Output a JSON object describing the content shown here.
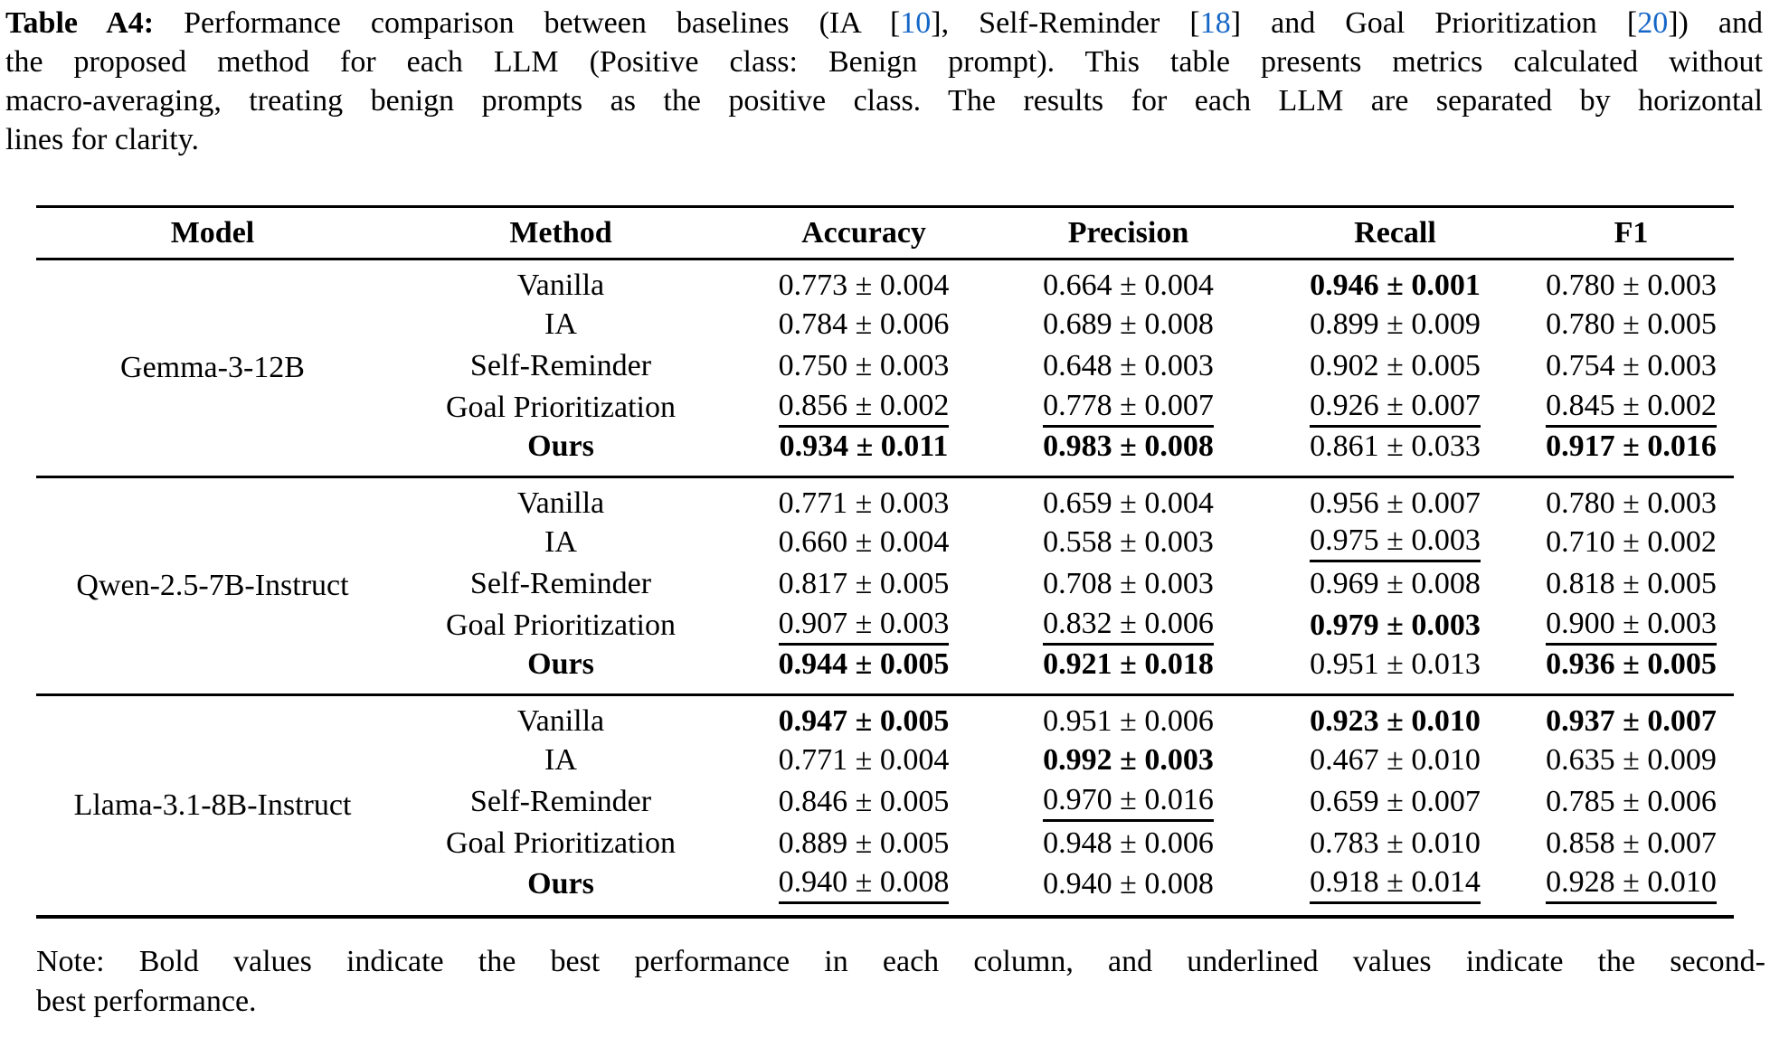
{
  "colors": {
    "citation_blue": "#1566C6",
    "text": "#000000",
    "background": "#FFFFFF",
    "rule": "#000000"
  },
  "caption": {
    "line1": {
      "label": "Table A4:",
      "seg1": " Performance comparison between baselines (IA [",
      "cite1": "10",
      "seg2": "], Self-Reminder [",
      "cite2": "18",
      "seg3": "] and Goal Prioritization [",
      "cite3": "20",
      "seg4": "]) and"
    },
    "line2": "the proposed method for each LLM (Positive class: Benign prompt). This table presents metrics calculated without",
    "line3": "macro-averaging, treating benign prompts as the positive class. The results for each LLM are separated by horizontal",
    "line4": "lines for clarity."
  },
  "table": {
    "headers": [
      "Model",
      "Method",
      "Accuracy",
      "Precision",
      "Recall",
      "F1"
    ],
    "sections": [
      {
        "model": "Gemma-3-12B",
        "rows": [
          {
            "method": "Vanilla",
            "method_style": "plain",
            "values": [
              {
                "text": "0.773 ± 0.004",
                "style": "plain"
              },
              {
                "text": "0.664 ± 0.004",
                "style": "plain"
              },
              {
                "text": "0.946 ± 0.001",
                "style": "bold"
              },
              {
                "text": "0.780 ± 0.003",
                "style": "plain"
              }
            ]
          },
          {
            "method": "IA",
            "method_style": "plain",
            "values": [
              {
                "text": "0.784 ± 0.006",
                "style": "plain"
              },
              {
                "text": "0.689 ± 0.008",
                "style": "plain"
              },
              {
                "text": "0.899 ± 0.009",
                "style": "plain"
              },
              {
                "text": "0.780 ± 0.005",
                "style": "plain"
              }
            ]
          },
          {
            "method": "Self-Reminder",
            "method_style": "plain",
            "values": [
              {
                "text": "0.750 ± 0.003",
                "style": "plain"
              },
              {
                "text": "0.648 ± 0.003",
                "style": "plain"
              },
              {
                "text": "0.902 ± 0.005",
                "style": "plain"
              },
              {
                "text": "0.754 ± 0.003",
                "style": "plain"
              }
            ]
          },
          {
            "method": "Goal Prioritization",
            "method_style": "plain",
            "values": [
              {
                "text": "0.856 ± 0.002",
                "style": "underline"
              },
              {
                "text": "0.778 ± 0.007",
                "style": "underline"
              },
              {
                "text": "0.926 ± 0.007",
                "style": "underline"
              },
              {
                "text": "0.845 ± 0.002",
                "style": "underline"
              }
            ]
          },
          {
            "method": "Ours",
            "method_style": "bold",
            "values": [
              {
                "text": "0.934 ± 0.011",
                "style": "bold"
              },
              {
                "text": "0.983 ± 0.008",
                "style": "bold"
              },
              {
                "text": "0.861 ± 0.033",
                "style": "plain"
              },
              {
                "text": "0.917 ± 0.016",
                "style": "bold"
              }
            ]
          }
        ]
      },
      {
        "model": "Qwen-2.5-7B-Instruct",
        "rows": [
          {
            "method": "Vanilla",
            "method_style": "plain",
            "values": [
              {
                "text": "0.771 ± 0.003",
                "style": "plain"
              },
              {
                "text": "0.659 ± 0.004",
                "style": "plain"
              },
              {
                "text": "0.956 ± 0.007",
                "style": "plain"
              },
              {
                "text": "0.780 ± 0.003",
                "style": "plain"
              }
            ]
          },
          {
            "method": "IA",
            "method_style": "plain",
            "values": [
              {
                "text": "0.660 ± 0.004",
                "style": "plain"
              },
              {
                "text": "0.558 ± 0.003",
                "style": "plain"
              },
              {
                "text": "0.975 ± 0.003",
                "style": "underline"
              },
              {
                "text": "0.710 ± 0.002",
                "style": "plain"
              }
            ]
          },
          {
            "method": "Self-Reminder",
            "method_style": "plain",
            "values": [
              {
                "text": "0.817 ± 0.005",
                "style": "plain"
              },
              {
                "text": "0.708 ± 0.003",
                "style": "plain"
              },
              {
                "text": "0.969 ± 0.008",
                "style": "plain"
              },
              {
                "text": "0.818 ± 0.005",
                "style": "plain"
              }
            ]
          },
          {
            "method": "Goal Prioritization",
            "method_style": "plain",
            "values": [
              {
                "text": "0.907 ± 0.003",
                "style": "underline"
              },
              {
                "text": "0.832 ± 0.006",
                "style": "underline"
              },
              {
                "text": "0.979 ± 0.003",
                "style": "bold"
              },
              {
                "text": "0.900 ± 0.003",
                "style": "underline"
              }
            ]
          },
          {
            "method": "Ours",
            "method_style": "bold",
            "values": [
              {
                "text": "0.944 ± 0.005",
                "style": "bold"
              },
              {
                "text": "0.921 ± 0.018",
                "style": "bold"
              },
              {
                "text": "0.951 ± 0.013",
                "style": "plain"
              },
              {
                "text": "0.936 ± 0.005",
                "style": "bold"
              }
            ]
          }
        ]
      },
      {
        "model": "Llama-3.1-8B-Instruct",
        "rows": [
          {
            "method": "Vanilla",
            "method_style": "plain",
            "values": [
              {
                "text": "0.947 ± 0.005",
                "style": "bold"
              },
              {
                "text": "0.951 ± 0.006",
                "style": "plain"
              },
              {
                "text": "0.923 ± 0.010",
                "style": "bold"
              },
              {
                "text": "0.937 ± 0.007",
                "style": "bold"
              }
            ]
          },
          {
            "method": "IA",
            "method_style": "plain",
            "values": [
              {
                "text": "0.771 ± 0.004",
                "style": "plain"
              },
              {
                "text": "0.992 ± 0.003",
                "style": "bold"
              },
              {
                "text": "0.467 ± 0.010",
                "style": "plain"
              },
              {
                "text": "0.635 ± 0.009",
                "style": "plain"
              }
            ]
          },
          {
            "method": "Self-Reminder",
            "method_style": "plain",
            "values": [
              {
                "text": "0.846 ± 0.005",
                "style": "plain"
              },
              {
                "text": "0.970 ± 0.016",
                "style": "underline"
              },
              {
                "text": "0.659 ± 0.007",
                "style": "plain"
              },
              {
                "text": "0.785 ± 0.006",
                "style": "plain"
              }
            ]
          },
          {
            "method": "Goal Prioritization",
            "method_style": "plain",
            "values": [
              {
                "text": "0.889 ± 0.005",
                "style": "plain"
              },
              {
                "text": "0.948 ± 0.006",
                "style": "plain"
              },
              {
                "text": "0.783 ± 0.010",
                "style": "plain"
              },
              {
                "text": "0.858 ± 0.007",
                "style": "plain"
              }
            ]
          },
          {
            "method": "Ours",
            "method_style": "bold",
            "values": [
              {
                "text": "0.940 ± 0.008",
                "style": "underline"
              },
              {
                "text": "0.940 ± 0.008",
                "style": "plain"
              },
              {
                "text": "0.918 ± 0.014",
                "style": "underline"
              },
              {
                "text": "0.928 ± 0.010",
                "style": "underline"
              }
            ]
          }
        ]
      }
    ]
  },
  "note": {
    "line1": "Note: Bold values indicate the best performance in each column, and underlined values indicate the second-",
    "line2": "best performance."
  }
}
